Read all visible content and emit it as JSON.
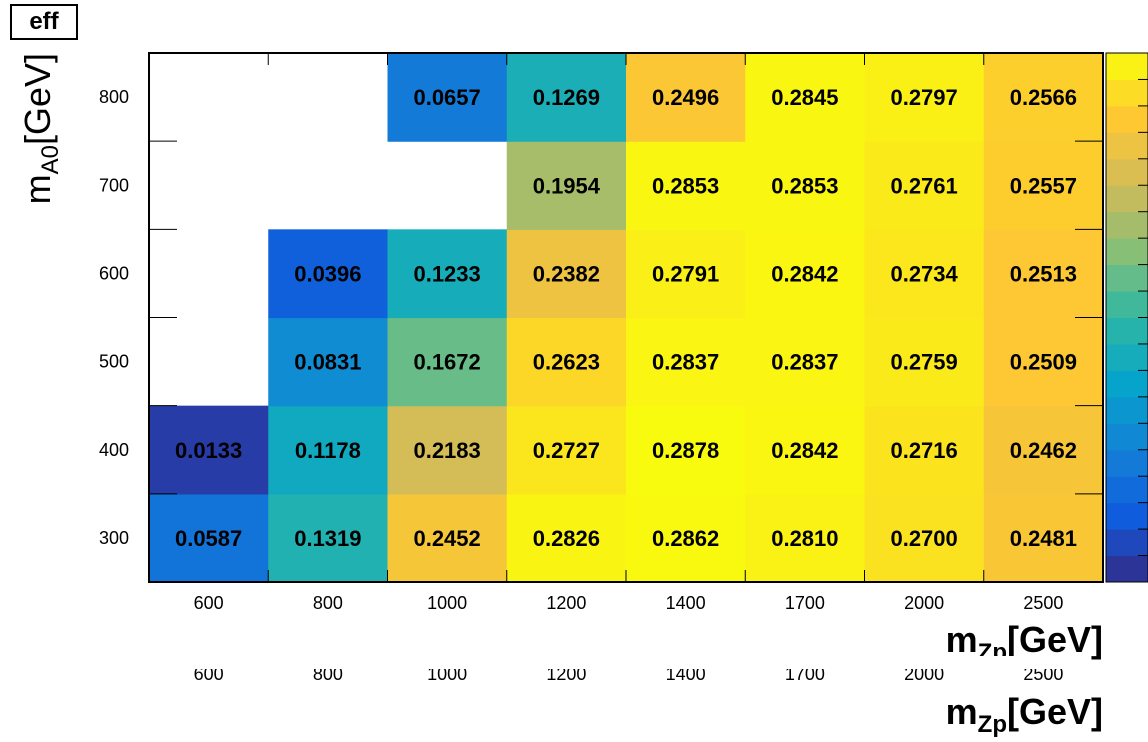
{
  "title": "eff",
  "chart_data": {
    "type": "heatmap",
    "title": "eff",
    "x_categories": [
      "600",
      "800",
      "1000",
      "1200",
      "1400",
      "1700",
      "2000",
      "2500"
    ],
    "y_categories": [
      "300",
      "400",
      "500",
      "600",
      "700",
      "800"
    ],
    "xlabel": {
      "main": "m",
      "sub": "Zp",
      "unit": "[GeV]"
    },
    "ylabel": {
      "main": "m",
      "sub": "A0",
      "unit": "[GeV]"
    },
    "z_range": [
      0,
      0.2878
    ],
    "colormap": "parula",
    "palette": [
      "#352a87",
      "#0f5cdd",
      "#1481d6",
      "#06a4ca",
      "#2eb7a4",
      "#87bf77",
      "#d1bb59",
      "#fec832",
      "#f9fb0e"
    ],
    "values": [
      [
        0.0587,
        0.1319,
        0.2452,
        0.2826,
        0.2862,
        0.281,
        0.27,
        0.2481
      ],
      [
        0.0133,
        0.1178,
        0.2183,
        0.2727,
        0.2878,
        0.2842,
        0.2716,
        0.2462
      ],
      [
        null,
        0.0831,
        0.1672,
        0.2623,
        0.2837,
        0.2837,
        0.2759,
        0.2509
      ],
      [
        null,
        0.0396,
        0.1233,
        0.2382,
        0.2791,
        0.2842,
        0.2734,
        0.2513
      ],
      [
        null,
        null,
        null,
        0.1954,
        0.2853,
        0.2853,
        0.2761,
        0.2557
      ],
      [
        null,
        null,
        0.0657,
        0.1269,
        0.2496,
        0.2845,
        0.2797,
        0.2566
      ]
    ],
    "value_labels": [
      [
        "0.0587",
        "0.1319",
        "0.2452",
        "0.2826",
        "0.2862",
        "0.2810",
        "0.2700",
        "0.2481"
      ],
      [
        "0.0133",
        "0.1178",
        "0.2183",
        "0.2727",
        "0.2878",
        "0.2842",
        "0.2716",
        "0.2462"
      ],
      [
        "",
        "0.0831",
        "0.1672",
        "0.2623",
        "0.2837",
        "0.2837",
        "0.2759",
        "0.2509"
      ],
      [
        "",
        "0.0396",
        "0.1233",
        "0.2382",
        "0.2791",
        "0.2842",
        "0.2734",
        "0.2513"
      ],
      [
        "",
        "",
        "",
        "0.1954",
        "0.2853",
        "0.2853",
        "0.2761",
        "0.2557"
      ],
      [
        "",
        "",
        "0.0657",
        "0.1269",
        "0.2496",
        "0.2845",
        "0.2797",
        "0.2566"
      ]
    ],
    "grid": false,
    "colorbar": "right"
  }
}
